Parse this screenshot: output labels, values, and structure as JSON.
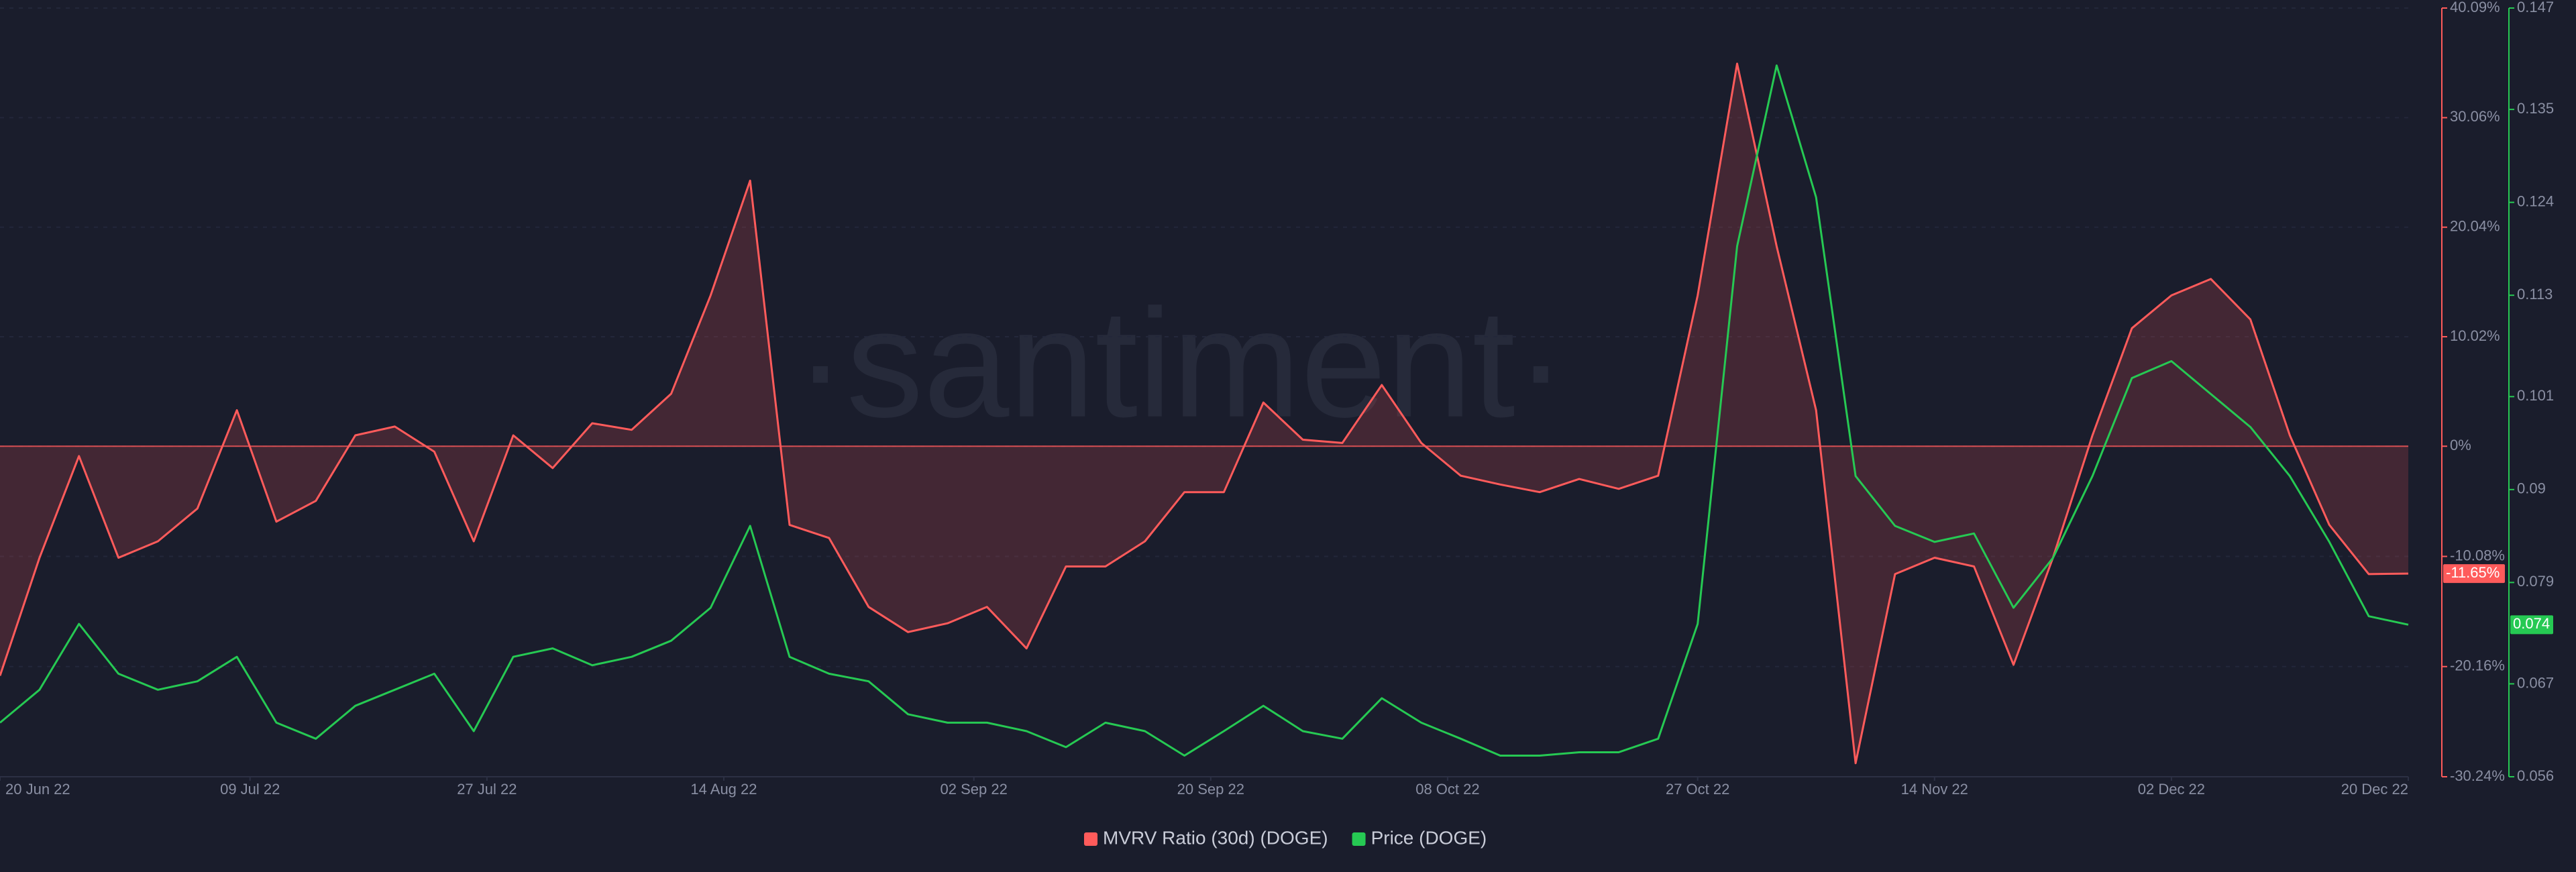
{
  "chart_data": {
    "type": "line",
    "watermark": "·santiment·",
    "x": [
      "2022-06-20",
      "2022-06-23",
      "2022-06-26",
      "2022-06-29",
      "2022-07-02",
      "2022-07-05",
      "2022-07-08",
      "2022-07-11",
      "2022-07-14",
      "2022-07-17",
      "2022-07-20",
      "2022-07-23",
      "2022-07-26",
      "2022-07-29",
      "2022-08-01",
      "2022-08-04",
      "2022-08-07",
      "2022-08-10",
      "2022-08-13",
      "2022-08-16",
      "2022-08-19",
      "2022-08-22",
      "2022-08-25",
      "2022-08-28",
      "2022-08-31",
      "2022-09-03",
      "2022-09-06",
      "2022-09-09",
      "2022-09-12",
      "2022-09-15",
      "2022-09-18",
      "2022-09-21",
      "2022-09-24",
      "2022-09-27",
      "2022-09-30",
      "2022-10-03",
      "2022-10-06",
      "2022-10-09",
      "2022-10-12",
      "2022-10-15",
      "2022-10-18",
      "2022-10-21",
      "2022-10-24",
      "2022-10-27",
      "2022-10-30",
      "2022-11-02",
      "2022-11-05",
      "2022-11-08",
      "2022-11-11",
      "2022-11-14",
      "2022-11-17",
      "2022-11-20",
      "2022-11-23",
      "2022-11-26",
      "2022-11-29",
      "2022-12-02",
      "2022-12-05",
      "2022-12-08",
      "2022-12-11",
      "2022-12-14",
      "2022-12-17",
      "2022-12-20"
    ],
    "xlim": [
      "2022-06-20",
      "2022-12-20"
    ],
    "xticks": [
      {
        "value": "2022-06-20",
        "label": "20 Jun 22"
      },
      {
        "value": "2022-07-09",
        "label": "09 Jul 22"
      },
      {
        "value": "2022-07-27",
        "label": "27 Jul 22"
      },
      {
        "value": "2022-08-14",
        "label": "14 Aug 22"
      },
      {
        "value": "2022-09-02",
        "label": "02 Sep 22"
      },
      {
        "value": "2022-09-20",
        "label": "20 Sep 22"
      },
      {
        "value": "2022-10-08",
        "label": "08 Oct 22"
      },
      {
        "value": "2022-10-27",
        "label": "27 Oct 22"
      },
      {
        "value": "2022-11-14",
        "label": "14 Nov 22"
      },
      {
        "value": "2022-12-02",
        "label": "02 Dec 22"
      },
      {
        "value": "2022-12-20",
        "label": "20 Dec 22"
      }
    ],
    "ylim": [
      -30.24,
      40.09
    ],
    "yticks": [
      {
        "value": -30.24,
        "label": "-30.24%"
      },
      {
        "value": -20.16,
        "label": "-20.16%"
      },
      {
        "value": -10.08,
        "label": "-10.08%"
      },
      {
        "value": 0,
        "label": "0%"
      },
      {
        "value": 10.02,
        "label": "10.02%"
      },
      {
        "value": 20.04,
        "label": "20.04%"
      },
      {
        "value": 30.06,
        "label": "30.06%"
      },
      {
        "value": 40.09,
        "label": "40.09%"
      }
    ],
    "y2lim": [
      0.056,
      0.147
    ],
    "y2ticks": [
      0.056,
      0.067,
      0.079,
      0.09,
      0.101,
      0.113,
      0.124,
      0.135,
      0.147
    ],
    "grid": true,
    "legend": "bottom",
    "series": [
      {
        "name": "MVRV Ratio (30d) (DOGE)",
        "color": "#ff5b5b",
        "axis": "y",
        "values": [
          -21,
          -10.2,
          -0.9,
          -10.2,
          -8.7,
          -5.7,
          3.3,
          -6.9,
          -5,
          1,
          1.8,
          -0.5,
          -8.7,
          1,
          -2,
          2.1,
          1.5,
          4.8,
          13.8,
          24.3,
          -7.2,
          -8.4,
          -14.7,
          -17,
          -16.2,
          -14.7,
          -18.5,
          -11,
          -11,
          -8.7,
          -4.2,
          -4.2,
          4,
          0.6,
          0.3,
          5.6,
          0.3,
          -2.7,
          -3.5,
          -4.2,
          -3,
          -3.9,
          -2.7,
          13.8,
          35,
          18.3,
          3.3,
          -29,
          -11.7,
          -10.2,
          -11,
          -20,
          -10.2,
          1,
          10.8,
          13.8,
          15.3,
          11.6,
          1,
          -7.2,
          -11.7,
          -11.65
        ],
        "value_labels": [
          null,
          null,
          null,
          null,
          null,
          null,
          null,
          null,
          null,
          null,
          null,
          null,
          null,
          null,
          null,
          null,
          null,
          null,
          null,
          null,
          null,
          null,
          null,
          null,
          null,
          null,
          null,
          null,
          null,
          null,
          null,
          null,
          null,
          null,
          null,
          null,
          null,
          null,
          null,
          null,
          null,
          null,
          null,
          null,
          null,
          null,
          null,
          null,
          null,
          null,
          null,
          null,
          null,
          null,
          null,
          null,
          null,
          null,
          null,
          null,
          null,
          "-11.65%"
        ]
      },
      {
        "name": "Price (DOGE)",
        "color": "#26c953",
        "axis": "y2",
        "values": [
          0.0624,
          0.0663,
          0.0741,
          0.0682,
          0.0663,
          0.0673,
          0.0702,
          0.0624,
          0.0605,
          0.0644,
          0.0663,
          0.0682,
          0.0614,
          0.0702,
          0.0712,
          0.0692,
          0.0702,
          0.0721,
          0.076,
          0.0857,
          0.0702,
          0.0682,
          0.0673,
          0.0634,
          0.0624,
          0.0624,
          0.0614,
          0.0595,
          0.0624,
          0.0614,
          0.0585,
          0.0614,
          0.0644,
          0.0614,
          0.0605,
          0.0653,
          0.0624,
          0.0605,
          0.0585,
          0.0585,
          0.0589,
          0.0589,
          0.0605,
          0.0741,
          0.1188,
          0.1402,
          0.1246,
          0.0916,
          0.0857,
          0.0838,
          0.0848,
          0.076,
          0.0819,
          0.0916,
          0.1032,
          0.1052,
          0.1013,
          0.0974,
          0.0916,
          0.0838,
          0.075,
          0.074
        ],
        "value_labels": [
          null,
          null,
          null,
          null,
          null,
          null,
          null,
          null,
          null,
          null,
          null,
          null,
          null,
          null,
          null,
          null,
          null,
          null,
          null,
          null,
          null,
          null,
          null,
          null,
          null,
          null,
          null,
          null,
          null,
          null,
          null,
          null,
          null,
          null,
          null,
          null,
          null,
          null,
          null,
          null,
          null,
          null,
          null,
          null,
          null,
          null,
          null,
          null,
          null,
          null,
          null,
          null,
          null,
          null,
          null,
          null,
          null,
          null,
          null,
          null,
          null,
          "0.074"
        ]
      }
    ]
  }
}
